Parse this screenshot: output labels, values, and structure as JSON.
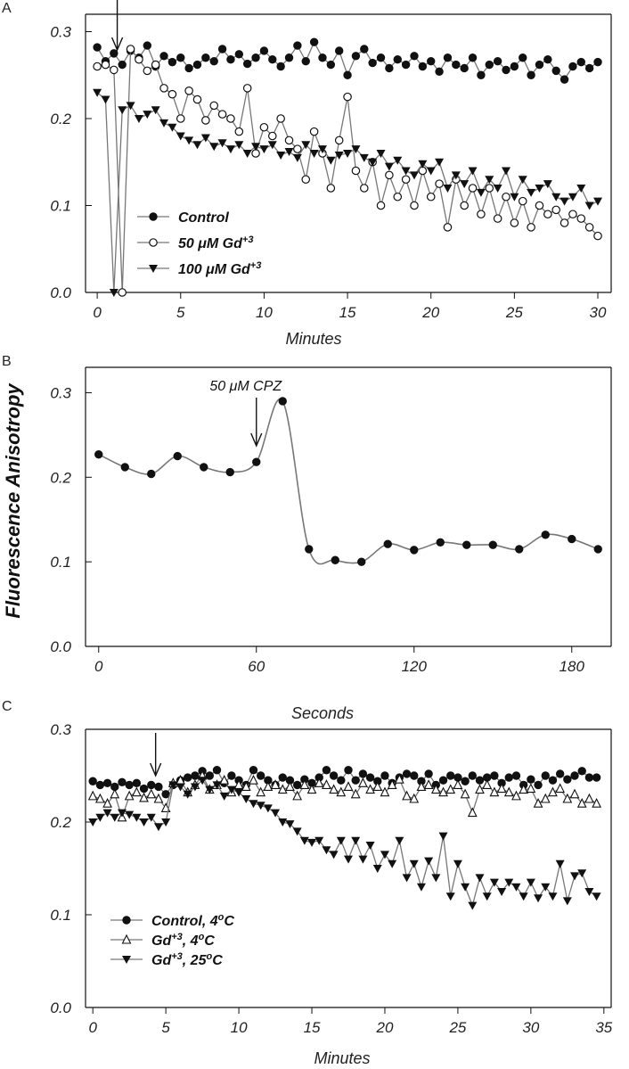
{
  "figure": {
    "ylabel": "Fluorescence Anisotropy"
  },
  "chart_data": [
    {
      "panel": "A",
      "type": "line",
      "xlabel": "Minutes",
      "ylabel": "Fluorescence Anisotropy",
      "xlim": [
        -0.7,
        30.8
      ],
      "ylim": [
        0.0,
        0.32
      ],
      "xticks": [
        0,
        5,
        10,
        15,
        20,
        25,
        30
      ],
      "yticks": [
        0.0,
        0.1,
        0.2,
        0.3
      ],
      "yticklabels": [
        "0.0",
        "0.1",
        "0.2",
        "0.3"
      ],
      "grid": false,
      "legend_position": "bottom-left",
      "annotations": [
        {
          "type": "arrow",
          "x": 1.2,
          "label": ""
        }
      ],
      "series": [
        {
          "name": "Control",
          "marker": "filled-circle",
          "x": [
            0,
            0.5,
            1,
            1.5,
            2,
            2.5,
            3,
            3.5,
            4,
            4.5,
            5,
            5.5,
            6,
            6.5,
            7,
            7.5,
            8,
            8.5,
            9,
            9.5,
            10,
            10.5,
            11,
            11.5,
            12,
            12.5,
            13,
            13.5,
            14,
            14.5,
            15,
            15.5,
            16,
            16.5,
            17,
            17.5,
            18,
            18.5,
            19,
            19.5,
            20,
            20.5,
            21,
            21.5,
            22,
            22.5,
            23,
            23.5,
            24,
            24.5,
            25,
            25.5,
            26,
            26.5,
            27,
            27.5,
            28,
            28.5,
            29,
            29.5,
            30
          ],
          "y": [
            0.282,
            0.266,
            0.275,
            0.262,
            0.278,
            0.27,
            0.284,
            0.26,
            0.272,
            0.265,
            0.27,
            0.258,
            0.262,
            0.27,
            0.266,
            0.28,
            0.268,
            0.274,
            0.263,
            0.27,
            0.278,
            0.268,
            0.26,
            0.27,
            0.284,
            0.266,
            0.288,
            0.27,
            0.262,
            0.278,
            0.25,
            0.272,
            0.28,
            0.264,
            0.27,
            0.258,
            0.268,
            0.262,
            0.272,
            0.26,
            0.266,
            0.254,
            0.27,
            0.262,
            0.258,
            0.27,
            0.25,
            0.262,
            0.266,
            0.256,
            0.26,
            0.27,
            0.25,
            0.262,
            0.268,
            0.255,
            0.245,
            0.26,
            0.265,
            0.258,
            0.265
          ]
        },
        {
          "name": "50 μM Gd+3",
          "marker": "open-circle",
          "x": [
            0,
            0.5,
            1,
            1.5,
            2,
            2.5,
            3,
            3.5,
            4,
            4.5,
            5,
            5.5,
            6,
            6.5,
            7,
            7.5,
            8,
            8.5,
            9,
            9.5,
            10,
            10.5,
            11,
            11.5,
            12,
            12.5,
            13,
            13.5,
            14,
            14.5,
            15,
            15.5,
            16,
            16.5,
            17,
            17.5,
            18,
            18.5,
            19,
            19.5,
            20,
            20.5,
            21,
            21.5,
            22,
            22.5,
            23,
            23.5,
            24,
            24.5,
            25,
            25.5,
            26,
            26.5,
            27,
            27.5,
            28,
            28.5,
            29,
            29.5,
            30
          ],
          "y": [
            0.26,
            0.262,
            0.256,
            0.0,
            0.28,
            0.268,
            0.255,
            0.262,
            0.235,
            0.228,
            0.2,
            0.232,
            0.222,
            0.198,
            0.215,
            0.205,
            0.2,
            0.185,
            0.235,
            0.16,
            0.19,
            0.18,
            0.2,
            0.175,
            0.165,
            0.13,
            0.185,
            0.16,
            0.12,
            0.175,
            0.225,
            0.14,
            0.12,
            0.15,
            0.1,
            0.135,
            0.11,
            0.13,
            0.1,
            0.14,
            0.11,
            0.125,
            0.075,
            0.13,
            0.1,
            0.12,
            0.09,
            0.12,
            0.085,
            0.11,
            0.08,
            0.105,
            0.075,
            0.1,
            0.09,
            0.095,
            0.08,
            0.09,
            0.085,
            0.075,
            0.065
          ]
        },
        {
          "name": "100 μM Gd+3",
          "marker": "filled-triangle-down",
          "x": [
            0,
            0.5,
            1,
            1.5,
            2,
            2.5,
            3,
            3.5,
            4,
            4.5,
            5,
            5.5,
            6,
            6.5,
            7,
            7.5,
            8,
            8.5,
            9,
            9.5,
            10,
            10.5,
            11,
            11.5,
            12,
            12.5,
            13,
            13.5,
            14,
            14.5,
            15,
            15.5,
            16,
            16.5,
            17,
            17.5,
            18,
            18.5,
            19,
            19.5,
            20,
            20.5,
            21,
            21.5,
            22,
            22.5,
            23,
            23.5,
            24,
            24.5,
            25,
            25.5,
            26,
            26.5,
            27,
            27.5,
            28,
            28.5,
            29,
            29.5,
            30
          ],
          "y": [
            0.23,
            0.222,
            0.0,
            0.21,
            0.215,
            0.2,
            0.205,
            0.21,
            0.195,
            0.19,
            0.18,
            0.175,
            0.17,
            0.178,
            0.168,
            0.172,
            0.165,
            0.17,
            0.16,
            0.168,
            0.165,
            0.17,
            0.158,
            0.162,
            0.155,
            0.17,
            0.16,
            0.165,
            0.152,
            0.158,
            0.16,
            0.165,
            0.155,
            0.15,
            0.16,
            0.145,
            0.152,
            0.14,
            0.135,
            0.148,
            0.14,
            0.15,
            0.12,
            0.135,
            0.125,
            0.14,
            0.115,
            0.13,
            0.12,
            0.14,
            0.11,
            0.13,
            0.115,
            0.12,
            0.125,
            0.11,
            0.105,
            0.11,
            0.12,
            0.1,
            0.105
          ]
        }
      ]
    },
    {
      "panel": "B",
      "type": "line",
      "xlabel": "Seconds",
      "ylabel": "Fluorescence Anisotropy",
      "xlim": [
        -5,
        195
      ],
      "ylim": [
        0.0,
        0.33
      ],
      "xticks": [
        0,
        60,
        120,
        180
      ],
      "yticks": [
        0.0,
        0.1,
        0.2,
        0.3
      ],
      "yticklabels": [
        "0.0",
        "0.1",
        "0.2",
        "0.3"
      ],
      "grid": false,
      "annotations": [
        {
          "type": "arrow",
          "x": 60,
          "label": "50 μM CPZ"
        }
      ],
      "series": [
        {
          "name": "",
          "marker": "filled-circle",
          "smooth": true,
          "x": [
            0,
            10,
            20,
            30,
            40,
            50,
            60,
            70,
            80,
            90,
            100,
            110,
            120,
            130,
            140,
            150,
            160,
            170,
            180,
            190
          ],
          "y": [
            0.227,
            0.212,
            0.204,
            0.225,
            0.212,
            0.206,
            0.218,
            0.29,
            0.115,
            0.102,
            0.1,
            0.121,
            0.114,
            0.123,
            0.12,
            0.12,
            0.115,
            0.132,
            0.127,
            0.115
          ]
        }
      ]
    },
    {
      "panel": "C",
      "type": "line",
      "xlabel": "Minutes",
      "ylabel": "Fluorescence Anisotropy",
      "xlim": [
        -0.5,
        35.5
      ],
      "ylim": [
        0.0,
        0.3
      ],
      "xticks": [
        0,
        5,
        10,
        15,
        20,
        25,
        30,
        35
      ],
      "yticks": [
        0.0,
        0.1,
        0.2,
        0.3
      ],
      "yticklabels": [
        "0.0",
        "0.1",
        "0.2",
        "0.3"
      ],
      "grid": false,
      "legend_position": "bottom-left",
      "annotations": [
        {
          "type": "arrow",
          "x": 4.3,
          "label": ""
        }
      ],
      "series": [
        {
          "name": "Control, 4oC",
          "marker": "filled-circle",
          "x": [
            0,
            0.5,
            1,
            1.5,
            2,
            2.5,
            3,
            3.5,
            4,
            4.5,
            5,
            5.5,
            6,
            6.5,
            7,
            7.5,
            8,
            8.5,
            9,
            9.5,
            10,
            10.5,
            11,
            11.5,
            12,
            12.5,
            13,
            13.5,
            14,
            14.5,
            15,
            15.5,
            16,
            16.5,
            17,
            17.5,
            18,
            18.5,
            19,
            19.5,
            20,
            20.5,
            21,
            21.5,
            22,
            22.5,
            23,
            23.5,
            24,
            24.5,
            25,
            25.5,
            26,
            26.5,
            27,
            27.5,
            28,
            28.5,
            29,
            29.5,
            30,
            30.5,
            31,
            31.5,
            32,
            32.5,
            33,
            33.5,
            34,
            34.5
          ],
          "y": [
            0.244,
            0.24,
            0.242,
            0.238,
            0.243,
            0.24,
            0.242,
            0.236,
            0.24,
            0.238,
            0.23,
            0.24,
            0.245,
            0.248,
            0.25,
            0.255,
            0.25,
            0.256,
            0.242,
            0.25,
            0.245,
            0.24,
            0.256,
            0.25,
            0.245,
            0.24,
            0.248,
            0.245,
            0.24,
            0.246,
            0.242,
            0.248,
            0.256,
            0.25,
            0.245,
            0.256,
            0.245,
            0.252,
            0.248,
            0.244,
            0.25,
            0.242,
            0.248,
            0.252,
            0.25,
            0.244,
            0.252,
            0.24,
            0.245,
            0.25,
            0.248,
            0.244,
            0.25,
            0.245,
            0.248,
            0.25,
            0.242,
            0.248,
            0.25,
            0.24,
            0.246,
            0.24,
            0.25,
            0.245,
            0.252,
            0.246,
            0.25,
            0.255,
            0.248,
            0.248
          ]
        },
        {
          "name": "Gd+3, 4oC",
          "marker": "open-triangle-up",
          "x": [
            0,
            0.5,
            1,
            1.5,
            2,
            2.5,
            3,
            3.5,
            4,
            4.5,
            5,
            5.5,
            6,
            6.5,
            7,
            7.5,
            8,
            8.5,
            9,
            9.5,
            10,
            10.5,
            11,
            11.5,
            12,
            12.5,
            13,
            13.5,
            14,
            14.5,
            15,
            15.5,
            16,
            16.5,
            17,
            17.5,
            18,
            18.5,
            19,
            19.5,
            20,
            20.5,
            21,
            21.5,
            22,
            22.5,
            23,
            23.5,
            24,
            24.5,
            25,
            25.5,
            26,
            26.5,
            27,
            27.5,
            28,
            28.5,
            29,
            29.5,
            30,
            30.5,
            31,
            31.5,
            32,
            32.5,
            33,
            33.5,
            34,
            34.5
          ],
          "y": [
            0.228,
            0.225,
            0.22,
            0.23,
            0.205,
            0.228,
            0.232,
            0.226,
            0.23,
            0.225,
            0.215,
            0.242,
            0.245,
            0.232,
            0.24,
            0.25,
            0.235,
            0.24,
            0.245,
            0.232,
            0.24,
            0.238,
            0.245,
            0.232,
            0.238,
            0.24,
            0.235,
            0.238,
            0.228,
            0.24,
            0.235,
            0.242,
            0.24,
            0.235,
            0.232,
            0.238,
            0.23,
            0.242,
            0.235,
            0.238,
            0.232,
            0.24,
            0.246,
            0.228,
            0.225,
            0.238,
            0.24,
            0.235,
            0.232,
            0.235,
            0.24,
            0.23,
            0.21,
            0.235,
            0.24,
            0.232,
            0.236,
            0.232,
            0.228,
            0.235,
            0.236,
            0.22,
            0.225,
            0.232,
            0.236,
            0.225,
            0.23,
            0.22,
            0.225,
            0.22
          ]
        },
        {
          "name": "Gd+3, 25oC",
          "marker": "filled-triangle-down",
          "x": [
            0,
            0.5,
            1,
            1.5,
            2,
            2.5,
            3,
            3.5,
            4,
            4.5,
            5,
            5.5,
            6,
            6.5,
            7,
            7.5,
            8,
            8.5,
            9,
            9.5,
            10,
            10.5,
            11,
            11.5,
            12,
            12.5,
            13,
            13.5,
            14,
            14.5,
            15,
            15.5,
            16,
            16.5,
            17,
            17.5,
            18,
            18.5,
            19,
            19.5,
            20,
            20.5,
            21,
            21.5,
            22,
            22.5,
            23,
            23.5,
            24,
            24.5,
            25,
            25.5,
            26,
            26.5,
            27,
            27.5,
            28,
            28.5,
            29,
            29.5,
            30,
            30.5,
            31,
            31.5,
            32,
            32.5,
            33,
            33.5,
            34,
            34.5
          ],
          "y": [
            0.2,
            0.205,
            0.21,
            0.205,
            0.21,
            0.208,
            0.205,
            0.2,
            0.205,
            0.195,
            0.2,
            0.24,
            0.238,
            0.23,
            0.238,
            0.245,
            0.235,
            0.24,
            0.228,
            0.235,
            0.232,
            0.225,
            0.22,
            0.218,
            0.215,
            0.21,
            0.2,
            0.198,
            0.19,
            0.18,
            0.178,
            0.18,
            0.17,
            0.165,
            0.18,
            0.16,
            0.18,
            0.16,
            0.175,
            0.15,
            0.165,
            0.155,
            0.18,
            0.14,
            0.155,
            0.13,
            0.158,
            0.14,
            0.185,
            0.12,
            0.155,
            0.13,
            0.11,
            0.14,
            0.12,
            0.135,
            0.125,
            0.135,
            0.13,
            0.12,
            0.135,
            0.118,
            0.13,
            0.12,
            0.155,
            0.115,
            0.142,
            0.145,
            0.125,
            0.12
          ]
        }
      ]
    }
  ]
}
